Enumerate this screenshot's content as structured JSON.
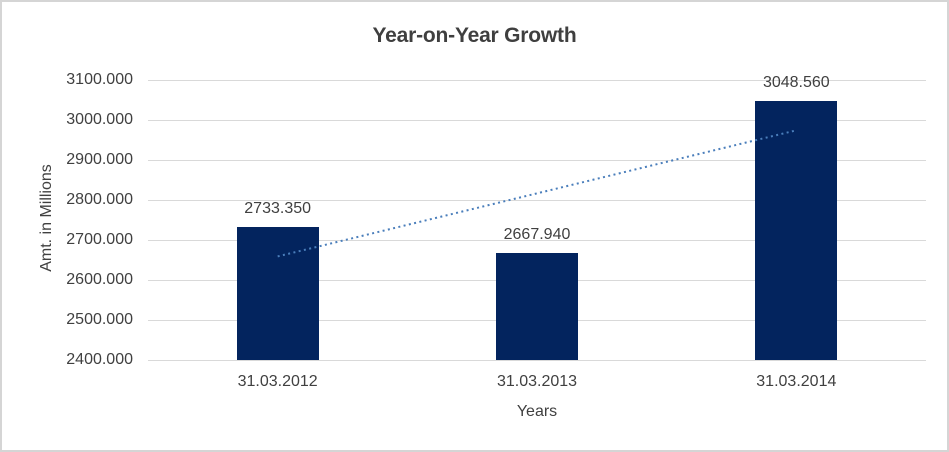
{
  "chart_data": {
    "type": "bar",
    "title": "Year-on-Year Growth",
    "xlabel": "Years",
    "ylabel": "Amt. in Millions",
    "categories": [
      "31.03.2012",
      "31.03.2013",
      "31.03.2014"
    ],
    "values": [
      2733.35,
      2667.94,
      3048.56
    ],
    "data_labels": [
      "2733.350",
      "2667.940",
      "3048.560"
    ],
    "y_ticks": [
      "3100.000",
      "3000.000",
      "2900.000",
      "2800.000",
      "2700.000",
      "2600.000",
      "2500.000",
      "2400.000"
    ],
    "ylim": [
      2400,
      3100
    ],
    "y_tick_step": 100,
    "grid": true,
    "legend": "none",
    "trendline": {
      "type": "linear",
      "style": "dotted"
    },
    "colors": {
      "bar": "#03245E",
      "trendline": "#4A7EBB",
      "gridline": "#D9D9D9",
      "text": "#404040",
      "title": "#3F3F3F",
      "background": "#FFFFFF",
      "border": "#D5D5D5"
    }
  }
}
